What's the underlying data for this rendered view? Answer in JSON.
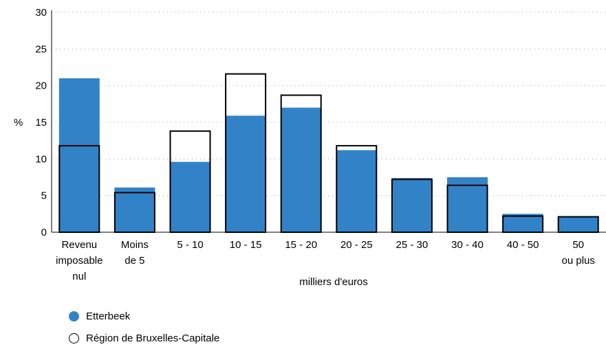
{
  "chart_data": {
    "type": "bar",
    "ylabel": "%",
    "xlabel": "milliers d'euros",
    "ylim": [
      0,
      30
    ],
    "yticks": [
      0,
      5,
      10,
      15,
      20,
      25,
      30
    ],
    "grid": true,
    "legend_position": "bottom-left",
    "categories": [
      [
        "Revenu",
        "imposable",
        "nul"
      ],
      [
        "Moins",
        "de 5"
      ],
      [
        "5 - 10"
      ],
      [
        "10 - 15"
      ],
      [
        "15 - 20"
      ],
      [
        "20 - 25"
      ],
      [
        "25 - 30"
      ],
      [
        "30 - 40"
      ],
      [
        "40 - 50"
      ],
      [
        "50",
        "ou plus"
      ]
    ],
    "series": [
      {
        "name": "Etterbeek",
        "style": "filled",
        "color": "#3282c8",
        "values": [
          21.0,
          6.1,
          9.6,
          15.9,
          17.0,
          11.2,
          7.4,
          7.5,
          2.5,
          2.2
        ]
      },
      {
        "name": "Région de Bruxelles-Capitale",
        "style": "outline",
        "color": "#000000",
        "values": [
          11.8,
          5.4,
          13.8,
          21.6,
          18.7,
          11.8,
          7.2,
          6.4,
          2.2,
          2.1
        ]
      }
    ]
  }
}
